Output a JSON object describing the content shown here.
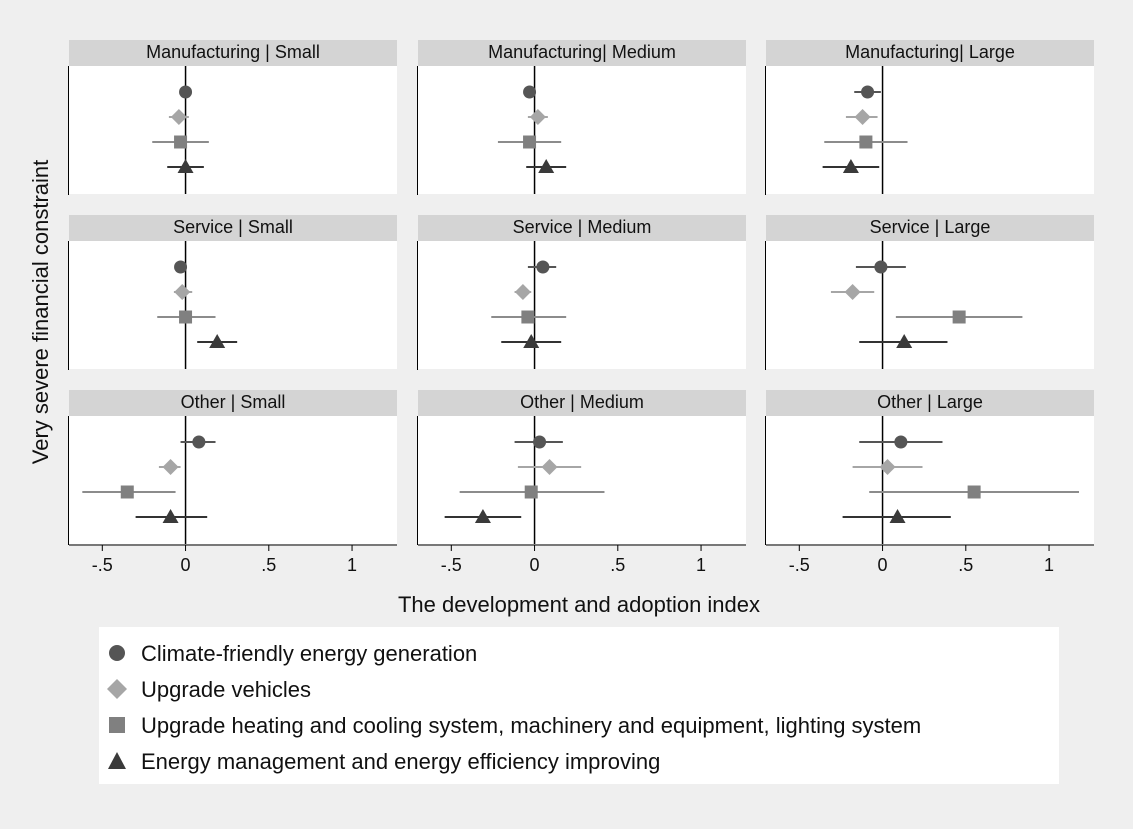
{
  "chart_data": {
    "type": "scatter",
    "subtype": "coefficient-plot-with-confidence-intervals",
    "ylabel": "Very severe financial constraint",
    "xlabel": "The development and adoption index",
    "xlim": [
      -0.7,
      1.27
    ],
    "xticks": [
      -0.5,
      0,
      0.5,
      1
    ],
    "xtick_labels": [
      "-.5",
      "0",
      ".5",
      "1"
    ],
    "reference_line_x": 0,
    "series": [
      {
        "name": "Climate-friendly energy generation",
        "marker": "circle",
        "color": "#555555",
        "ci_color": "#555555"
      },
      {
        "name": "Upgrade vehicles",
        "marker": "diamond",
        "color": "#a6a6a6",
        "ci_color": "#a6a6a6"
      },
      {
        "name": "Upgrade heating and cooling system, machinery and equipment, lighting system",
        "marker": "square",
        "color": "#808080",
        "ci_color": "#8c8c8c"
      },
      {
        "name": "Energy management and energy efficiency improving",
        "marker": "triangle",
        "color": "#3a3a3a",
        "ci_color": "#333333"
      }
    ],
    "panels": [
      {
        "title": "Manufacturing | Small",
        "points": [
          {
            "est": 0.0,
            "lo": -0.02,
            "hi": 0.03
          },
          {
            "est": -0.04,
            "lo": -0.1,
            "hi": 0.02
          },
          {
            "est": -0.03,
            "lo": -0.2,
            "hi": 0.14
          },
          {
            "est": 0.0,
            "lo": -0.11,
            "hi": 0.11
          }
        ]
      },
      {
        "title": "Manufacturing| Medium",
        "points": [
          {
            "est": -0.03,
            "lo": -0.06,
            "hi": 0.0
          },
          {
            "est": 0.02,
            "lo": -0.04,
            "hi": 0.08
          },
          {
            "est": -0.03,
            "lo": -0.22,
            "hi": 0.16
          },
          {
            "est": 0.07,
            "lo": -0.05,
            "hi": 0.19
          }
        ]
      },
      {
        "title": "Manufacturing| Large",
        "points": [
          {
            "est": -0.09,
            "lo": -0.17,
            "hi": -0.01
          },
          {
            "est": -0.12,
            "lo": -0.22,
            "hi": -0.03
          },
          {
            "est": -0.1,
            "lo": -0.35,
            "hi": 0.15
          },
          {
            "est": -0.19,
            "lo": -0.36,
            "hi": -0.02
          }
        ]
      },
      {
        "title": "Service | Small",
        "points": [
          {
            "est": -0.03,
            "lo": -0.06,
            "hi": 0.0
          },
          {
            "est": -0.02,
            "lo": -0.07,
            "hi": 0.04
          },
          {
            "est": 0.0,
            "lo": -0.17,
            "hi": 0.18
          },
          {
            "est": 0.19,
            "lo": 0.07,
            "hi": 0.31
          }
        ]
      },
      {
        "title": "Service | Medium",
        "points": [
          {
            "est": 0.05,
            "lo": -0.04,
            "hi": 0.13
          },
          {
            "est": -0.07,
            "lo": -0.12,
            "hi": -0.02
          },
          {
            "est": -0.04,
            "lo": -0.26,
            "hi": 0.19
          },
          {
            "est": -0.02,
            "lo": -0.2,
            "hi": 0.16
          }
        ]
      },
      {
        "title": "Service | Large",
        "points": [
          {
            "est": -0.01,
            "lo": -0.16,
            "hi": 0.14
          },
          {
            "est": -0.18,
            "lo": -0.31,
            "hi": -0.05
          },
          {
            "est": 0.46,
            "lo": 0.08,
            "hi": 0.84
          },
          {
            "est": 0.13,
            "lo": -0.14,
            "hi": 0.39
          }
        ]
      },
      {
        "title": "Other | Small",
        "points": [
          {
            "est": 0.08,
            "lo": -0.03,
            "hi": 0.18
          },
          {
            "est": -0.09,
            "lo": -0.16,
            "hi": -0.03
          },
          {
            "est": -0.35,
            "lo": -0.62,
            "hi": -0.06
          },
          {
            "est": -0.09,
            "lo": -0.3,
            "hi": 0.13
          }
        ]
      },
      {
        "title": "Other | Medium",
        "points": [
          {
            "est": 0.03,
            "lo": -0.12,
            "hi": 0.17
          },
          {
            "est": 0.09,
            "lo": -0.1,
            "hi": 0.28
          },
          {
            "est": -0.02,
            "lo": -0.45,
            "hi": 0.42
          },
          {
            "est": -0.31,
            "lo": -0.54,
            "hi": -0.08
          }
        ]
      },
      {
        "title": "Other | Large",
        "points": [
          {
            "est": 0.11,
            "lo": -0.14,
            "hi": 0.36
          },
          {
            "est": 0.03,
            "lo": -0.18,
            "hi": 0.24
          },
          {
            "est": 0.55,
            "lo": -0.08,
            "hi": 1.18
          },
          {
            "est": 0.09,
            "lo": -0.24,
            "hi": 0.41
          }
        ]
      }
    ]
  }
}
